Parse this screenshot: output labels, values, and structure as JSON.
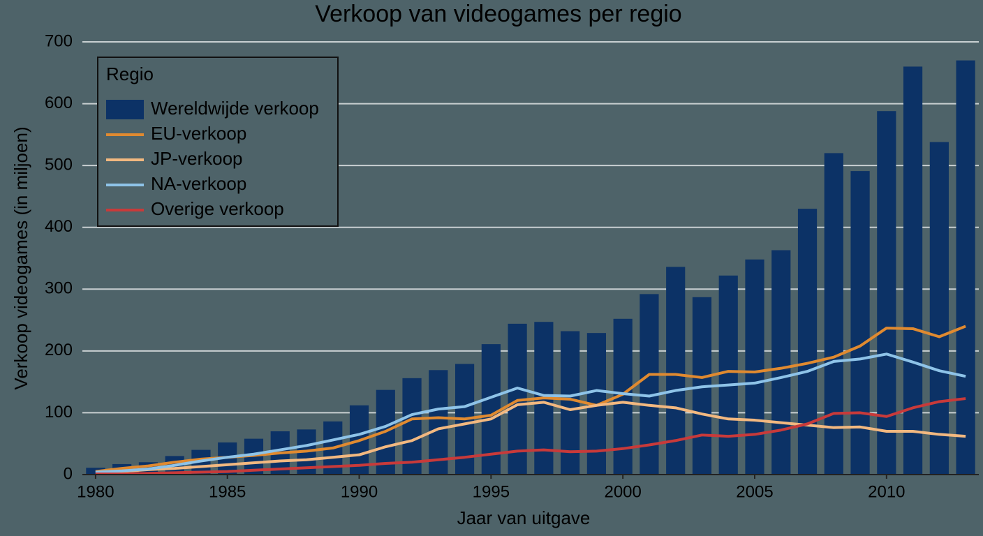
{
  "chart_data": {
    "type": "combo",
    "title": "Verkoop van videogames per regio",
    "x_label": "Jaar van uitgave",
    "y_label": "Verkoop videogames (in miljoen)",
    "legend_title": "Regio",
    "legend": "top-left",
    "grid": true,
    "x": [
      1980,
      1981,
      1982,
      1983,
      1984,
      1985,
      1986,
      1987,
      1988,
      1989,
      1990,
      1991,
      1992,
      1993,
      1994,
      1995,
      1996,
      1997,
      1998,
      1999,
      2000,
      2001,
      2002,
      2003,
      2004,
      2005,
      2006,
      2007,
      2008,
      2009,
      2010,
      2011,
      2012,
      2013
    ],
    "xlim": [
      1979.5,
      2013.5
    ],
    "xticks": [
      1980,
      1985,
      1990,
      1995,
      2000,
      2005,
      2010
    ],
    "ylim": [
      0,
      700
    ],
    "yticks": [
      0,
      100,
      200,
      300,
      400,
      500,
      600,
      700
    ],
    "series": [
      {
        "name": "Wereldwijde verkoop",
        "type": "bar",
        "color": "#0c3266",
        "values": [
          11,
          17,
          20,
          30,
          40,
          52,
          58,
          70,
          73,
          86,
          112,
          137,
          156,
          169,
          179,
          211,
          244,
          247,
          232,
          229,
          252,
          292,
          336,
          287,
          322,
          348,
          363,
          430,
          520,
          491,
          588,
          660,
          538,
          670
        ]
      },
      {
        "name": "EU-verkoop",
        "type": "line",
        "color": "#e08a30",
        "values": [
          5,
          10,
          14,
          20,
          25,
          28,
          31,
          35,
          38,
          43,
          55,
          70,
          90,
          92,
          90,
          96,
          120,
          124,
          122,
          112,
          130,
          162,
          162,
          157,
          167,
          166,
          172,
          180,
          190,
          208,
          237,
          236,
          223,
          240
        ]
      },
      {
        "name": "JP-verkoop",
        "type": "line",
        "color": "#f2b880",
        "values": [
          3,
          5,
          8,
          10,
          13,
          16,
          19,
          22,
          24,
          28,
          32,
          45,
          55,
          74,
          82,
          90,
          113,
          117,
          105,
          112,
          117,
          112,
          108,
          98,
          90,
          88,
          84,
          80,
          76,
          77,
          70,
          70,
          65,
          62
        ]
      },
      {
        "name": "NA-verkoop",
        "type": "line",
        "color": "#8ec3e8",
        "values": [
          4,
          6,
          9,
          15,
          22,
          28,
          33,
          40,
          47,
          56,
          65,
          78,
          97,
          106,
          110,
          125,
          140,
          128,
          127,
          136,
          131,
          127,
          136,
          142,
          145,
          148,
          157,
          167,
          183,
          187,
          195,
          182,
          168,
          159
        ]
      },
      {
        "name": "Overige verkoop",
        "type": "line",
        "color": "#c83a3a",
        "values": [
          1,
          1,
          2,
          3,
          4,
          5,
          7,
          9,
          11,
          13,
          15,
          18,
          20,
          24,
          28,
          33,
          38,
          40,
          37,
          38,
          42,
          48,
          55,
          64,
          62,
          65,
          72,
          82,
          99,
          100,
          94,
          108,
          118,
          123
        ]
      }
    ]
  }
}
